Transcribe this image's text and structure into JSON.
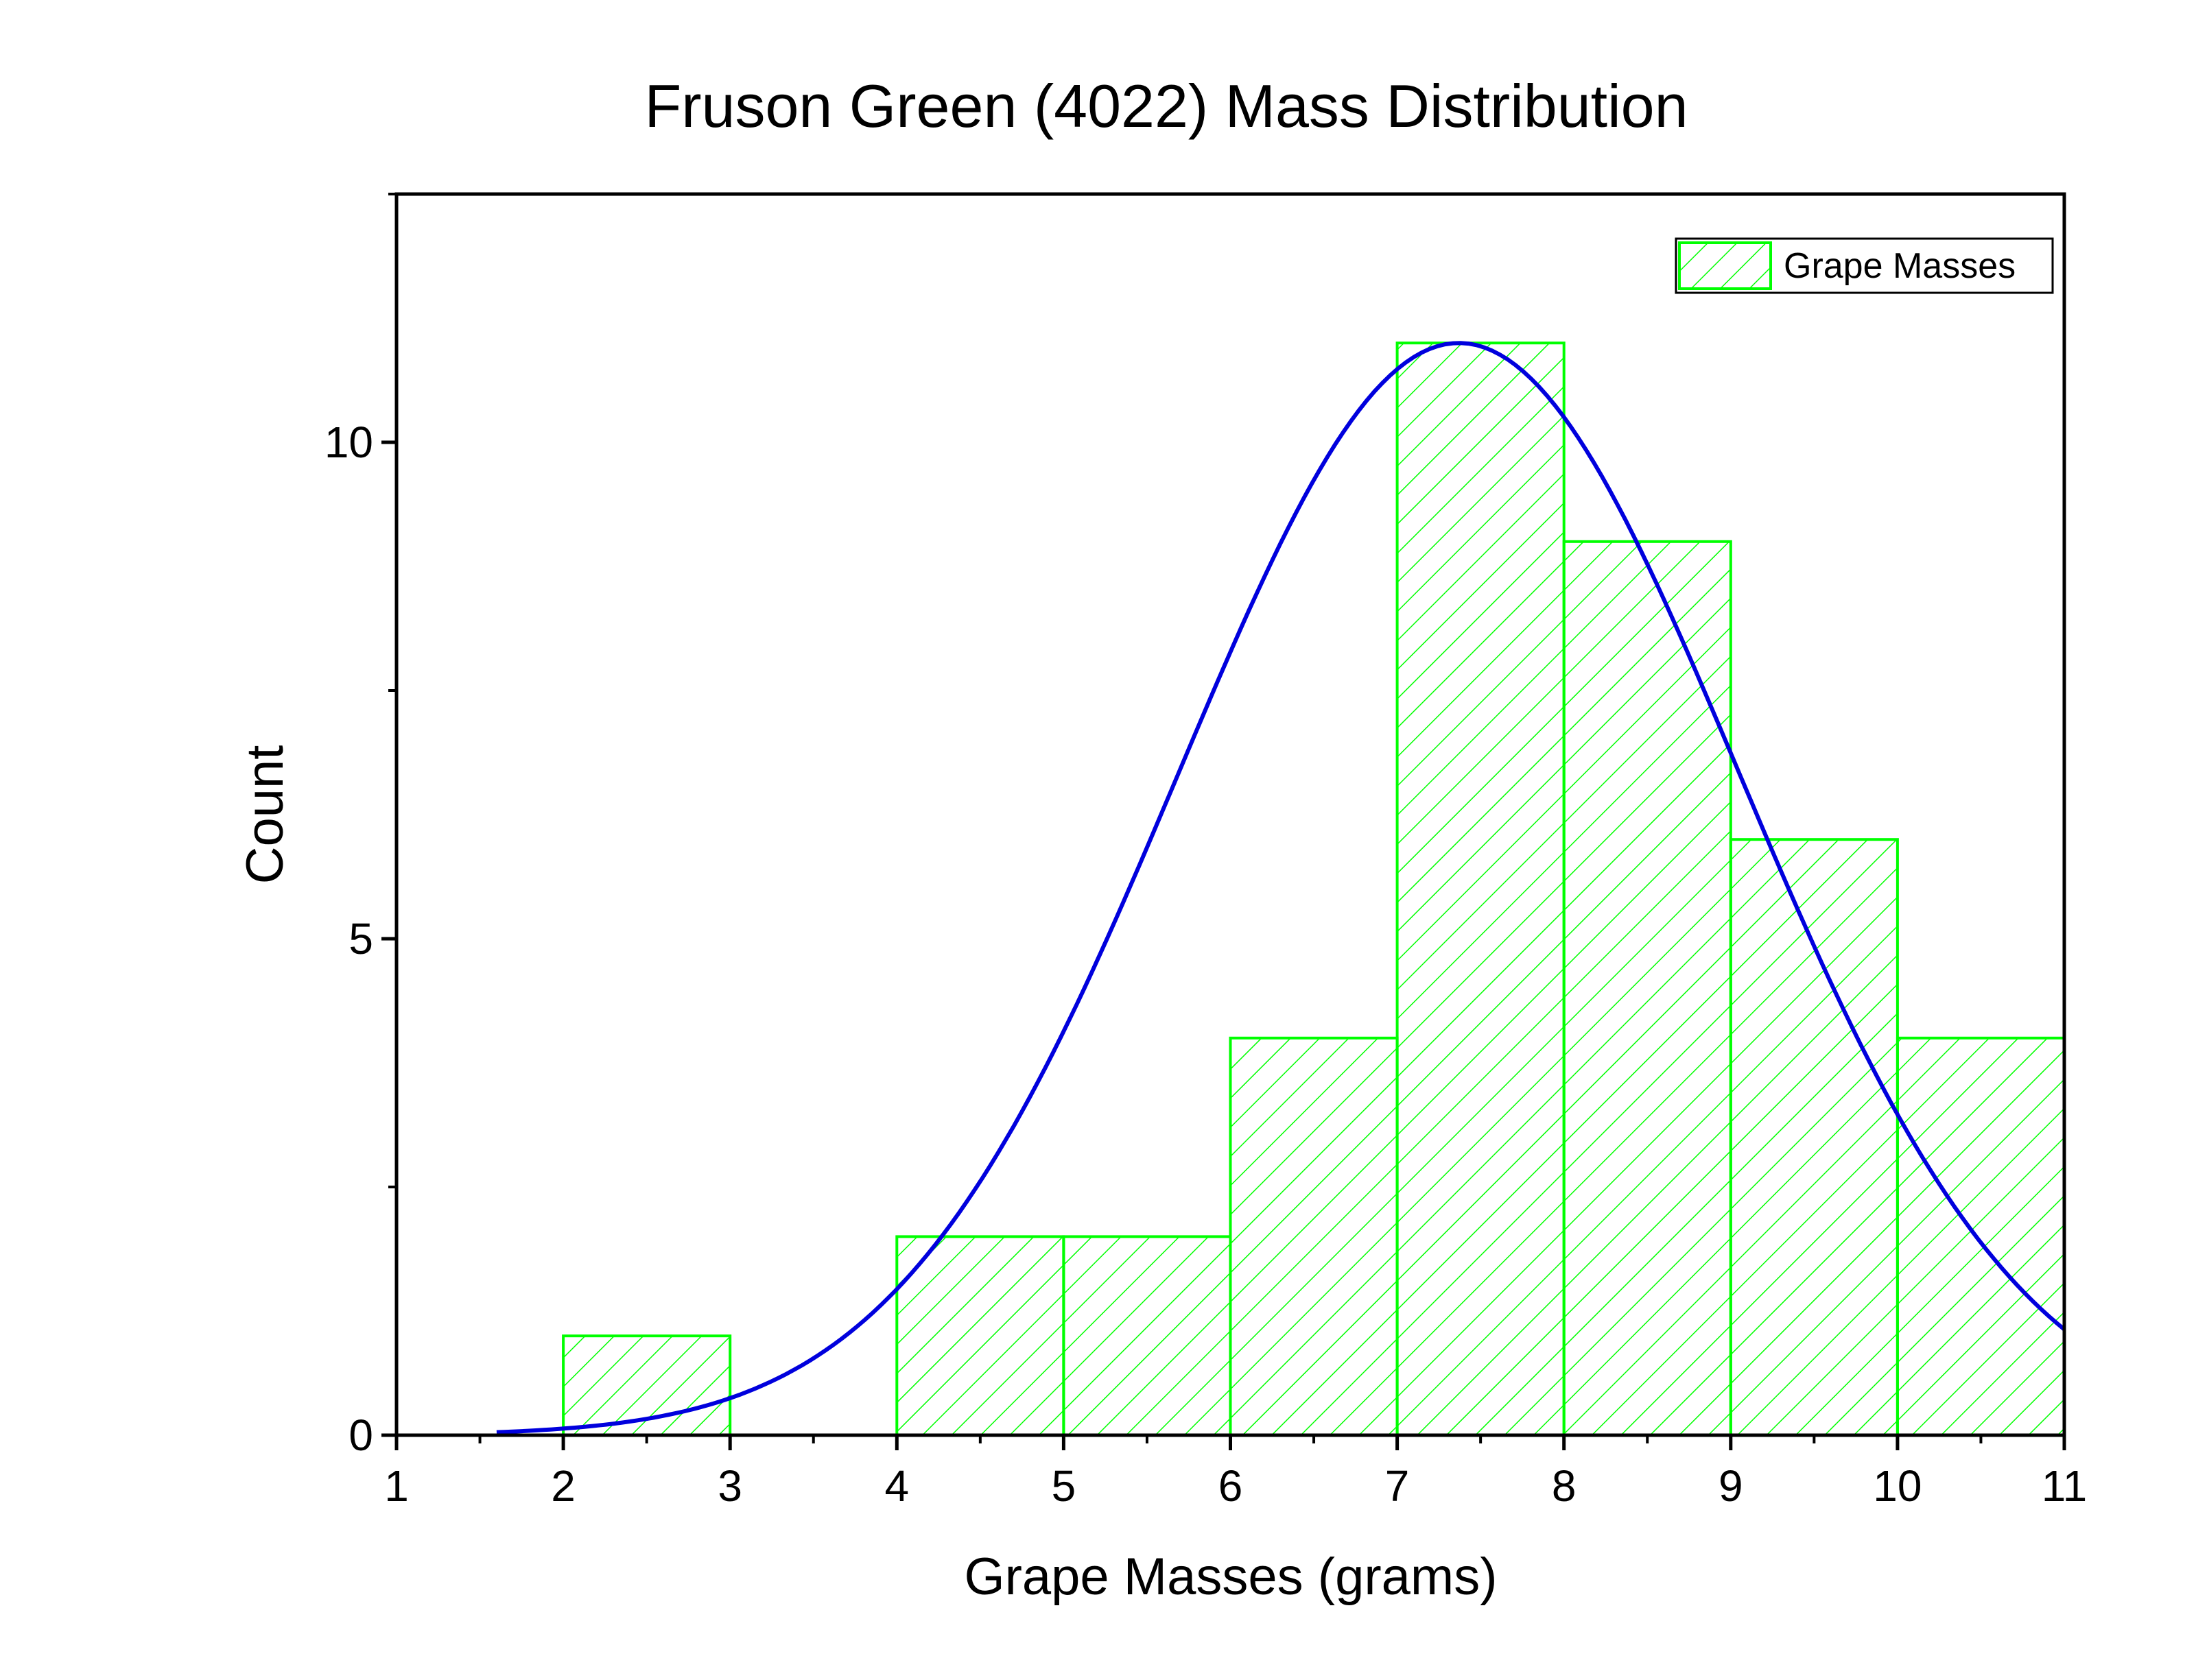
{
  "chart_data": {
    "type": "bar",
    "subtype": "histogram",
    "title": "Fruson Green (4022) Mass Distribution",
    "xlabel": "Grape Masses (grams)",
    "ylabel": "Count",
    "xlim": [
      1,
      11
    ],
    "ylim": [
      0,
      12.5
    ],
    "xticks": [
      "1",
      "2",
      "3",
      "4",
      "5",
      "6",
      "7",
      "8",
      "9",
      "10",
      "11"
    ],
    "yticks": [
      "0",
      "5",
      "10"
    ],
    "grid": false,
    "legend": {
      "position": "top-right",
      "entries": [
        "Grape Masses"
      ]
    },
    "bins": [
      {
        "x0": 2,
        "x1": 3,
        "count": 1
      },
      {
        "x0": 4,
        "x1": 5,
        "count": 2
      },
      {
        "x0": 5,
        "x1": 6,
        "count": 2
      },
      {
        "x0": 6,
        "x1": 7,
        "count": 4
      },
      {
        "x0": 7,
        "x1": 8,
        "count": 11
      },
      {
        "x0": 8,
        "x1": 9,
        "count": 9
      },
      {
        "x0": 9,
        "x1": 10,
        "count": 6
      },
      {
        "x0": 10,
        "x1": 11,
        "count": 4
      }
    ],
    "series": [
      {
        "name": "Grape Masses",
        "kind": "histogram",
        "color": "#00ff00",
        "fill": "diagonal-hatch"
      },
      {
        "kind": "normal-fit-curve",
        "color": "#0000dd",
        "peak_x": 7.37,
        "peak_y": 11.0,
        "sigma": 1.68,
        "x_start": 1.6,
        "x_end": 11
      }
    ]
  }
}
